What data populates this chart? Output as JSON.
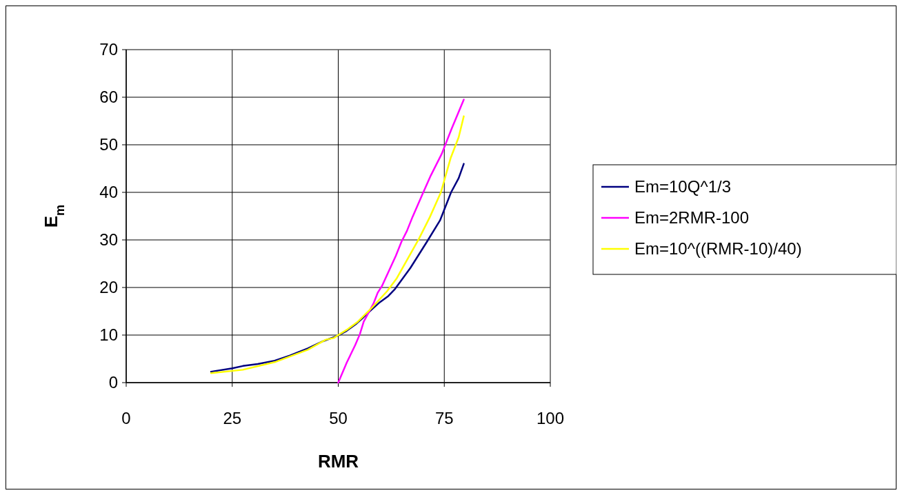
{
  "chart_data": {
    "type": "line",
    "xlabel": "RMR",
    "ylabel": "E$_{m}$",
    "xlim": [
      0,
      100
    ],
    "xticks": [
      0,
      25,
      50,
      75,
      100
    ],
    "ylim": [
      0,
      70
    ],
    "yticks": [
      0,
      10,
      20,
      30,
      40,
      50,
      60,
      70
    ],
    "grid": true,
    "legend": "right",
    "marker": "none",
    "line_style": "solid",
    "series": [
      {
        "name": "Em=10Q^1/3",
        "color": "#000080",
        "x": [
          20,
          25,
          27.5,
          31,
          35,
          38.6,
          42.8,
          46.4,
          50,
          52,
          54.3,
          55.9,
          57.9,
          59.8,
          61.8,
          63.4,
          67,
          70.9,
          74,
          76.6,
          78.4,
          79.6
        ],
        "values": [
          2.3,
          3,
          3.5,
          3.9,
          4.6,
          5.7,
          7.2,
          8.7,
          9.9,
          10.9,
          12.4,
          13.7,
          15.4,
          16.9,
          18.2,
          19.7,
          24.1,
          29.6,
          34.1,
          40,
          43,
          46
        ]
      },
      {
        "name": "Em=2RMR-100",
        "color": "#ff00ff",
        "x": [
          50,
          52,
          54,
          55.1,
          56,
          58.3,
          59.3,
          60.3,
          63.6,
          64.9,
          66.2,
          67.5,
          69.8,
          71.8,
          74.4,
          76.7,
          79.6
        ],
        "values": [
          0,
          4.2,
          7.9,
          10.2,
          12.8,
          16.6,
          18.9,
          20.3,
          26.7,
          29.6,
          31.9,
          34.8,
          39.5,
          43.5,
          48.1,
          53.3,
          59.5
        ]
      },
      {
        "name": "Em=10^((RMR-10)/40)",
        "color": "#ffff00",
        "x": [
          20,
          27.5,
          35,
          42.8,
          47,
          49,
          50,
          52,
          54.6,
          57.9,
          61.5,
          63.7,
          69,
          71.6,
          74.2,
          76.5,
          78.4,
          79.6
        ],
        "values": [
          2,
          2.7,
          4.3,
          6.9,
          9,
          9.4,
          10,
          11.1,
          12.8,
          15.7,
          19.2,
          21.8,
          30.2,
          34.8,
          40,
          47.2,
          51.6,
          56
        ]
      }
    ]
  }
}
